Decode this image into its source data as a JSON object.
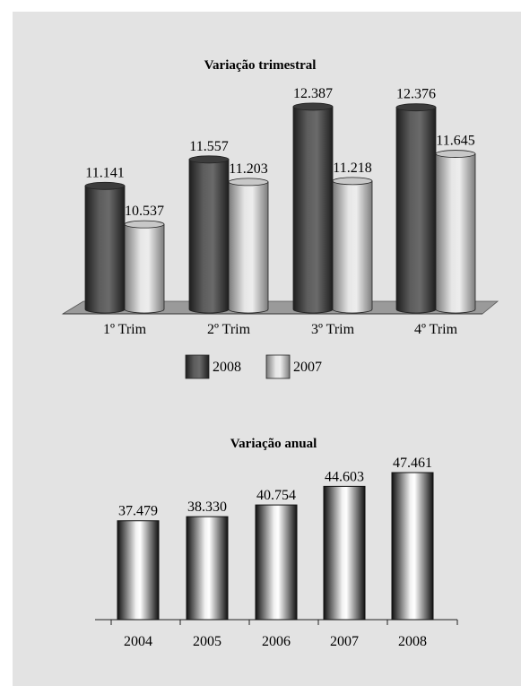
{
  "chart_data": [
    {
      "type": "bar",
      "title": "Variação trimestral",
      "categories": [
        "1º Trim",
        "2º Trim",
        "3º Trim",
        "4º Trim"
      ],
      "series": [
        {
          "name": "2008",
          "values": [
            11141,
            11557,
            12387,
            12376
          ],
          "labels": [
            "11.141",
            "11.557",
            "12.387",
            "12.376"
          ],
          "color": "#4a4a4a"
        },
        {
          "name": "2007",
          "values": [
            10537,
            11203,
            11218,
            11645
          ],
          "labels": [
            "10.537",
            "11.203",
            "11.218",
            "11.645"
          ],
          "color": "#b5b5b5"
        }
      ],
      "ylim": [
        0,
        13000
      ],
      "legend": "bottom",
      "grid": false
    },
    {
      "type": "bar",
      "title": "Variação anual",
      "categories": [
        "2004",
        "2005",
        "2006",
        "2007",
        "2008"
      ],
      "values": [
        37479,
        38330,
        40754,
        44603,
        47461
      ],
      "labels": [
        "37.479",
        "38.330",
        "40.754",
        "44.603",
        "47.461"
      ],
      "color": "#9a9a9a",
      "ylim": [
        0,
        50000
      ],
      "grid": false
    }
  ]
}
